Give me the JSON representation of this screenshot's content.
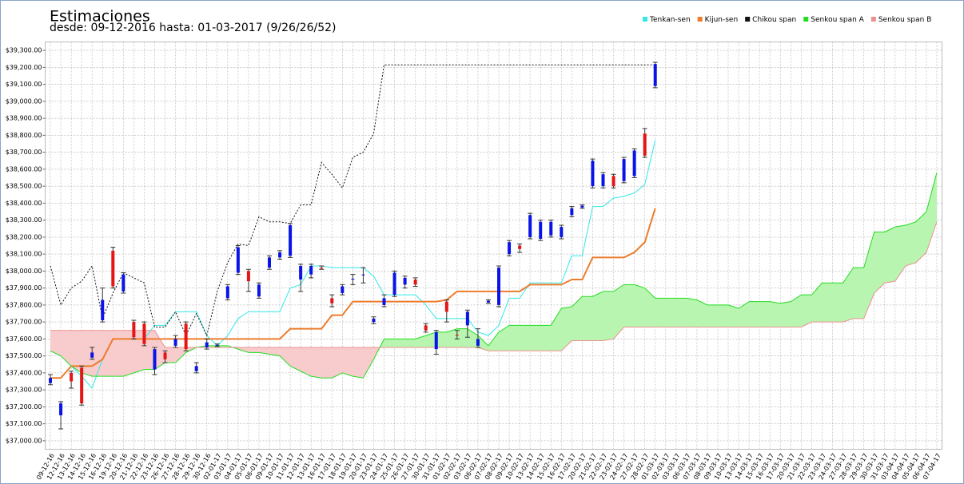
{
  "chart_data": {
    "type": "candlestick",
    "title": "Estimaciones",
    "subtitle": "desde: 09-12-2016 hasta: 01-03-2017 (9/26/26/52)",
    "x": [
      "09-12-16",
      "12-12-16",
      "13-12-16",
      "14-12-16",
      "15-12-16",
      "16-12-16",
      "19-12-16",
      "20-12-16",
      "21-12-16",
      "22-12-16",
      "23-12-16",
      "26-12-16",
      "27-12-16",
      "28-12-16",
      "29-12-16",
      "30-12-16",
      "02-01-17",
      "03-01-17",
      "04-01-17",
      "05-01-17",
      "06-01-17",
      "09-01-17",
      "10-01-17",
      "11-01-17",
      "12-01-17",
      "13-01-17",
      "16-01-17",
      "17-01-17",
      "18-01-17",
      "19-01-17",
      "20-01-17",
      "23-01-17",
      "24-01-17",
      "25-01-17",
      "26-01-17",
      "27-01-17",
      "30-01-17",
      "31-01-17",
      "01-02-17",
      "02-02-17",
      "03-02-17",
      "06-02-17",
      "07-02-17",
      "08-02-17",
      "09-02-17",
      "10-02-17",
      "13-02-17",
      "14-02-17",
      "15-02-17",
      "16-02-17",
      "17-02-17",
      "20-02-17",
      "21-02-17",
      "22-02-17",
      "23-02-17",
      "24-02-17",
      "27-02-17",
      "28-02-17",
      "01-03-17",
      "02-03-17",
      "03-03-17",
      "06-03-17",
      "07-03-17",
      "08-03-17",
      "09-03-17",
      "10-03-17",
      "13-03-17",
      "14-03-17",
      "15-03-17",
      "16-03-17",
      "17-03-17",
      "20-03-17",
      "21-03-17",
      "22-03-17",
      "23-03-17",
      "24-03-17",
      "27-03-17",
      "28-03-17",
      "29-03-17",
      "30-03-17",
      "31-03-17",
      "03-04-17",
      "04-04-17",
      "05-04-17",
      "06-04-17",
      "07-04-17"
    ],
    "open": [
      37340,
      37150,
      37400,
      37430,
      37490,
      37710,
      38120,
      37880,
      37700,
      37690,
      37420,
      37520,
      37560,
      37690,
      37410,
      37550,
      37560,
      37840,
      37990,
      38000,
      37850,
      38020,
      38080,
      38090,
      37950,
      37980,
      38020,
      37840,
      37870,
      37950,
      37975,
      37700,
      37800,
      37860,
      37920,
      37950,
      37680,
      37540,
      37820,
      37625,
      37680,
      37560,
      37815,
      37800,
      38100,
      38150,
      38200,
      38190,
      38210,
      38200,
      38330,
      38375,
      38500,
      38500,
      38560,
      38530,
      38560,
      38810,
      39090,
      null,
      null,
      null,
      null,
      null,
      null,
      null,
      null,
      null,
      null,
      null,
      null,
      null,
      null,
      null,
      null,
      null,
      null,
      null,
      null,
      null,
      null,
      null,
      null,
      null,
      null,
      null
    ],
    "high": [
      37390,
      37230,
      37410,
      37440,
      37550,
      37900,
      38140,
      37990,
      37710,
      37700,
      37550,
      37530,
      37620,
      37700,
      37460,
      37600,
      37570,
      37920,
      38150,
      38010,
      37930,
      38090,
      38120,
      38280,
      38040,
      38040,
      38030,
      37860,
      37920,
      37980,
      38020,
      37730,
      37860,
      38000,
      37970,
      37960,
      37690,
      37650,
      37830,
      37650,
      37770,
      37660,
      37830,
      38030,
      38180,
      38160,
      38340,
      38300,
      38300,
      38270,
      38380,
      38390,
      38660,
      38580,
      38570,
      38670,
      38720,
      38840,
      39230,
      null,
      null,
      null,
      null,
      null,
      null,
      null,
      null,
      null,
      null,
      null,
      null,
      null,
      null,
      null,
      null,
      null,
      null,
      null,
      null,
      null,
      null,
      null,
      null,
      null,
      null,
      null
    ],
    "low": [
      37330,
      37070,
      37310,
      37210,
      37480,
      37700,
      37900,
      37870,
      37600,
      37560,
      37390,
      37460,
      37550,
      37530,
      37400,
      37540,
      37555,
      37830,
      37980,
      37880,
      37840,
      38010,
      38070,
      38080,
      37880,
      37960,
      38010,
      37790,
      37860,
      37920,
      37930,
      37690,
      37790,
      37850,
      37900,
      37910,
      37640,
      37510,
      37700,
      37600,
      37610,
      37550,
      37810,
      37790,
      38090,
      38110,
      38190,
      38180,
      38200,
      38190,
      38320,
      38370,
      38490,
      38490,
      38490,
      38520,
      38550,
      38670,
      39080,
      null,
      null,
      null,
      null,
      null,
      null,
      null,
      null,
      null,
      null,
      null,
      null,
      null,
      null,
      null,
      null,
      null,
      null,
      null,
      null,
      null,
      null,
      null,
      null,
      null,
      null,
      null
    ],
    "close": [
      37370,
      37220,
      37350,
      37220,
      37520,
      37830,
      37910,
      37980,
      37610,
      37570,
      37540,
      37480,
      37600,
      37540,
      37440,
      37580,
      37565,
      37910,
      38140,
      37940,
      37920,
      38080,
      38110,
      38270,
      38030,
      38030,
      38015,
      37810,
      37910,
      37955,
      37980,
      37720,
      37840,
      37990,
      37960,
      37920,
      37650,
      37640,
      37760,
      37620,
      37760,
      37600,
      37825,
      38020,
      38170,
      38130,
      38330,
      38290,
      38290,
      38260,
      38370,
      38385,
      38650,
      38570,
      38500,
      38660,
      38710,
      38680,
      39220,
      null,
      null,
      null,
      null,
      null,
      null,
      null,
      null,
      null,
      null,
      null,
      null,
      null,
      null,
      null,
      null,
      null,
      null,
      null,
      null,
      null,
      null,
      null,
      null,
      null,
      null,
      null
    ],
    "up_color": "#0a14e6",
    "down_color": "#e61414",
    "wick_color": "#333333",
    "series": [
      {
        "name": "Tenkan-sen",
        "color": "#33e8e8",
        "width": 1,
        "dash": false,
        "values": [
          37370,
          37370,
          37440,
          37380,
          37310,
          37480,
          37600,
          37600,
          37600,
          37600,
          37680,
          37680,
          37760,
          37760,
          37760,
          37620,
          37560,
          37620,
          37720,
          37760,
          37760,
          37760,
          37760,
          37900,
          37920,
          38030,
          38030,
          38020,
          38020,
          38020,
          38020,
          37970,
          37860,
          37860,
          37860,
          37860,
          37800,
          37720,
          37720,
          37720,
          37720,
          37640,
          37620,
          37680,
          37840,
          37840,
          37930,
          37930,
          37930,
          37930,
          38090,
          38090,
          38380,
          38380,
          38430,
          38440,
          38460,
          38510,
          38770,
          null,
          null,
          null,
          null,
          null,
          null,
          null,
          null,
          null,
          null,
          null,
          null,
          null,
          null,
          null,
          null,
          null,
          null,
          null,
          null,
          null,
          null,
          null,
          null,
          null,
          null,
          null
        ]
      },
      {
        "name": "Kijun-sen",
        "color": "#ec7c2c",
        "width": 2,
        "dash": false,
        "values": [
          37370,
          37370,
          37440,
          37440,
          37440,
          37480,
          37600,
          37600,
          37600,
          37600,
          37600,
          37600,
          37600,
          37600,
          37600,
          37600,
          37600,
          37600,
          37600,
          37600,
          37600,
          37600,
          37600,
          37660,
          37660,
          37660,
          37660,
          37740,
          37740,
          37820,
          37820,
          37820,
          37820,
          37820,
          37820,
          37820,
          37820,
          37820,
          37830,
          37880,
          37880,
          37880,
          37880,
          37880,
          37880,
          37880,
          37920,
          37920,
          37920,
          37920,
          37950,
          37950,
          38080,
          38080,
          38080,
          38080,
          38110,
          38170,
          38370,
          null,
          null,
          null,
          null,
          null,
          null,
          null,
          null,
          null,
          null,
          null,
          null,
          null,
          null,
          null,
          null,
          null,
          null,
          null,
          null,
          null,
          null,
          null,
          null,
          null,
          null,
          null
        ]
      },
      {
        "name": "Chikou span",
        "color": "#111111",
        "width": 1,
        "dash": true,
        "values": [
          38030,
          37800,
          37900,
          37940,
          38030,
          37720,
          37870,
          37990,
          37960,
          37930,
          37670,
          37670,
          37760,
          37620,
          37750,
          37620,
          37880,
          38050,
          38160,
          38150,
          38320,
          38290,
          38290,
          38280,
          38390,
          38390,
          38640,
          38570,
          38490,
          38670,
          38700,
          38810,
          39215,
          39215,
          39215,
          39215,
          39215,
          39215,
          39215,
          39215,
          39215,
          39215,
          39215,
          39215,
          39215,
          39215,
          39215,
          39215,
          39215,
          39215,
          39215,
          39215,
          39215,
          39215,
          39215,
          39215,
          39215,
          39215,
          39215,
          null,
          null,
          null,
          null,
          null,
          null,
          null,
          null,
          null,
          null,
          null,
          null,
          null,
          null,
          null,
          null,
          null,
          null,
          null,
          null,
          null,
          null,
          null,
          null,
          null,
          null,
          null
        ]
      },
      {
        "name": "Senkou span A",
        "color": "#22dd22",
        "width": 1,
        "dash": false,
        "values": [
          37530,
          37500,
          37440,
          37400,
          37380,
          37380,
          37380,
          37380,
          37400,
          37420,
          37420,
          37460,
          37460,
          37520,
          37550,
          37560,
          37560,
          37560,
          37540,
          37520,
          37520,
          37510,
          37500,
          37440,
          37410,
          37380,
          37370,
          37370,
          37400,
          37380,
          37370,
          37480,
          37600,
          37600,
          37600,
          37600,
          37620,
          37640,
          37640,
          37660,
          37660,
          37620,
          37560,
          37640,
          37680,
          37680,
          37680,
          37680,
          37680,
          37780,
          37790,
          37850,
          37850,
          37880,
          37880,
          37920,
          37920,
          37900,
          37840,
          37840,
          37840,
          37840,
          37830,
          37800,
          37800,
          37800,
          37780,
          37820,
          37820,
          37820,
          37810,
          37820,
          37860,
          37860,
          37930,
          37930,
          37930,
          38020,
          38020,
          38230,
          38230,
          38260,
          38270,
          38290,
          38350,
          38580
        ]
      },
      {
        "name": "Senkou span B",
        "color": "#ee9090",
        "width": 1,
        "dash": false,
        "values": [
          37650,
          37650,
          37650,
          37650,
          37650,
          37650,
          37650,
          37650,
          37650,
          37650,
          37650,
          37550,
          37550,
          37550,
          37550,
          37550,
          37550,
          37550,
          37550,
          37550,
          37550,
          37550,
          37550,
          37550,
          37550,
          37550,
          37550,
          37550,
          37550,
          37550,
          37550,
          37550,
          37550,
          37550,
          37550,
          37550,
          37550,
          37550,
          37550,
          37550,
          37550,
          37550,
          37530,
          37530,
          37530,
          37530,
          37530,
          37530,
          37530,
          37530,
          37590,
          37590,
          37590,
          37590,
          37600,
          37670,
          37670,
          37670,
          37670,
          37670,
          37670,
          37670,
          37670,
          37670,
          37670,
          37670,
          37670,
          37670,
          37670,
          37670,
          37670,
          37670,
          37670,
          37700,
          37700,
          37700,
          37700,
          37720,
          37720,
          37870,
          37930,
          37940,
          38030,
          38050,
          38110,
          38290
        ]
      }
    ],
    "cloud_colors": {
      "bull": "#b8f5b0",
      "bear": "#f8cccc"
    },
    "ylim": [
      36950,
      39350
    ],
    "yticks": [
      {
        "value": 37000,
        "label": "$37,000.00"
      },
      {
        "value": 37100,
        "label": "$37,100.00"
      },
      {
        "value": 37200,
        "label": "$37,200.00"
      },
      {
        "value": 37300,
        "label": "$37,300.00"
      },
      {
        "value": 37400,
        "label": "$37,400.00"
      },
      {
        "value": 37500,
        "label": "$37,500.00"
      },
      {
        "value": 37600,
        "label": "$37,600.00"
      },
      {
        "value": 37700,
        "label": "$37,700.00"
      },
      {
        "value": 37800,
        "label": "$37,800.00"
      },
      {
        "value": 37900,
        "label": "$37,900.00"
      },
      {
        "value": 38000,
        "label": "$38,000.00"
      },
      {
        "value": 38100,
        "label": "$38,100.00"
      },
      {
        "value": 38200,
        "label": "$38,200.00"
      },
      {
        "value": 38300,
        "label": "$38,300.00"
      },
      {
        "value": 38400,
        "label": "$38,400.00"
      },
      {
        "value": 38500,
        "label": "$38,500.00"
      },
      {
        "value": 38600,
        "label": "$38,600.00"
      },
      {
        "value": 38700,
        "label": "$38,700.00"
      },
      {
        "value": 38800,
        "label": "$38,800.00"
      },
      {
        "value": 38900,
        "label": "$38,900.00"
      },
      {
        "value": 39000,
        "label": "$39,000.00"
      },
      {
        "value": 39100,
        "label": "$39,100.00"
      },
      {
        "value": 39200,
        "label": "$39,200.00"
      },
      {
        "value": 39300,
        "label": "$39,300.00"
      }
    ],
    "grid": true,
    "legend": "top-right"
  }
}
